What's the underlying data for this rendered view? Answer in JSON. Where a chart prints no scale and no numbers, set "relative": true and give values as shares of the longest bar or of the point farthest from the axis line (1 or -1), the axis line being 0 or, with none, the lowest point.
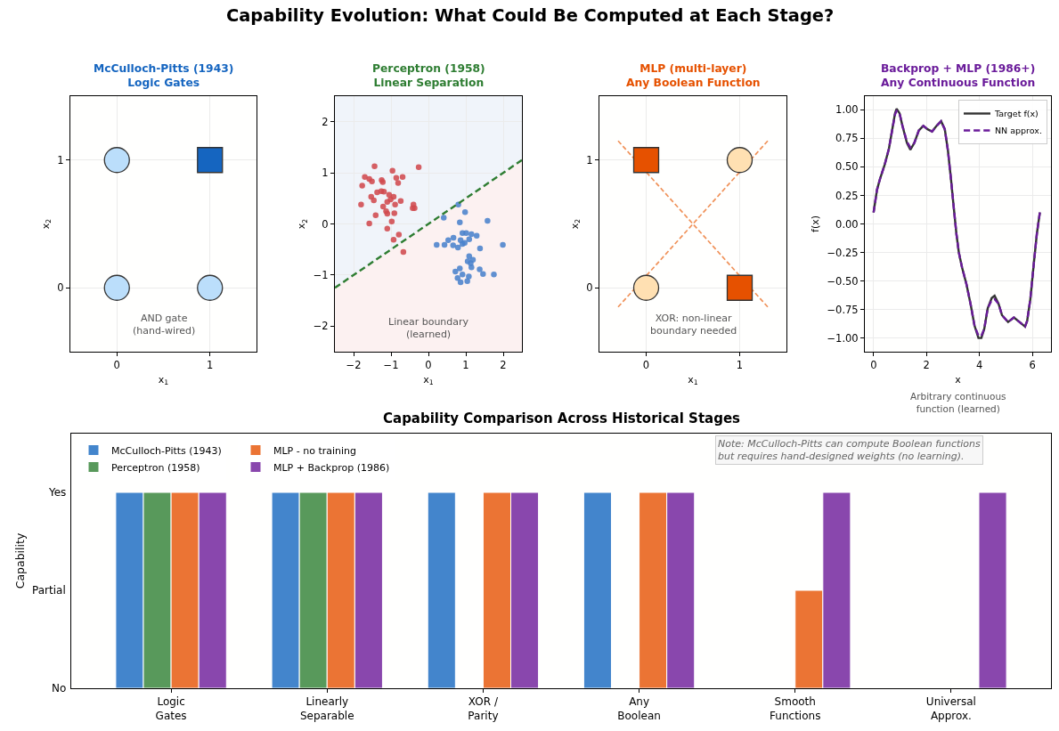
{
  "chart_data": [
    {
      "type": "other",
      "title": "Capability Evolution: What Could Be Computed at Each Stage?"
    },
    {
      "type": "scatter",
      "title": "McCulloch-Pitts (1943)\nLogic Gates",
      "xlabel": "x$_{1}$",
      "ylabel": "x$_{2}$",
      "xlim": [
        -0.5,
        1.5
      ],
      "ylim": [
        -0.5,
        1.5
      ],
      "xticks": [
        0,
        1
      ],
      "yticks": [
        0,
        1
      ],
      "grid": true,
      "annotations": [
        "AND gate\n(hand-wired)"
      ],
      "series": [
        {
          "x": [
            0,
            0,
            1
          ],
          "values": [
            0,
            1,
            0
          ],
          "color": "#bbdefb",
          "marker": "circle"
        },
        {
          "x": [
            1
          ],
          "values": [
            1
          ],
          "color": "#1565c0",
          "marker": "square"
        }
      ]
    },
    {
      "type": "scatter",
      "title": "Perceptron (1958)\nLinear Separation",
      "xlabel": "x$_{1}$",
      "ylabel": "x$_{2}$",
      "xlim": [
        -2.5,
        2.5
      ],
      "ylim": [
        -2.5,
        2.5
      ],
      "xticks": [
        -2,
        -1,
        0,
        1,
        2
      ],
      "yticks": [
        -2,
        -1,
        0,
        1,
        2
      ],
      "grid": true,
      "annotations": [
        "Linear boundary\n(learned)"
      ],
      "series": [
        {
          "x": [
            -1.44,
            -0.96,
            -0.26,
            -1.7,
            -1.58,
            -1.51,
            -1.25,
            -1.22,
            -0.86,
            -0.69,
            -0.81,
            -1.77,
            -1.37,
            -1.26,
            -1.19,
            -1.05,
            -0.93,
            -1.53,
            -1.46,
            -1.01,
            -0.74,
            -1.1,
            -1.8,
            -1.21,
            -0.89,
            -0.4,
            -0.42,
            -0.37,
            -1.13,
            -1.1,
            -0.91,
            -1.41,
            -1.58,
            -0.98,
            -1.1,
            -0.79,
            -0.93,
            -0.67
          ],
          "values": [
            1.13,
            1.04,
            1.11,
            0.92,
            0.88,
            0.83,
            0.86,
            0.82,
            0.9,
            0.92,
            0.8,
            0.75,
            0.62,
            0.64,
            0.63,
            0.57,
            0.53,
            0.53,
            0.46,
            0.48,
            0.45,
            0.43,
            0.38,
            0.34,
            0.38,
            0.38,
            0.31,
            0.31,
            0.25,
            0.2,
            0.21,
            0.17,
            0.01,
            0.05,
            -0.09,
            -0.21,
            -0.31,
            -0.55
          ],
          "color": "#d04a4f",
          "marker": "circle"
        },
        {
          "x": [
            0.8,
            0.98,
            0.41,
            0.84,
            1.58,
            0.91,
            1.01,
            1.15,
            1.29,
            0.67,
            0.53,
            0.86,
            1.09,
            0.22,
            0.43,
            0.66,
            0.91,
            0.97,
            0.79,
            1.38,
            1.99,
            1.09,
            1.19,
            1.05,
            1.13,
            1.15,
            0.84,
            0.72,
            1.37,
            1.46,
            1.75,
            0.91,
            1.08,
            0.78,
            0.86,
            1.04
          ],
          "values": [
            0.38,
            0.23,
            0.12,
            0.03,
            0.06,
            -0.18,
            -0.18,
            -0.2,
            -0.23,
            -0.27,
            -0.32,
            -0.32,
            -0.3,
            -0.41,
            -0.41,
            -0.42,
            -0.39,
            -0.37,
            -0.46,
            -0.48,
            -0.41,
            -0.63,
            -0.7,
            -0.73,
            -0.77,
            -0.85,
            -0.87,
            -0.93,
            -0.89,
            -0.98,
            -0.99,
            -0.99,
            -1.03,
            -1.06,
            -1.14,
            -1.12
          ],
          "color": "#4a82cc",
          "marker": "circle"
        },
        {
          "type": "line",
          "x": [
            -2.5,
            2.5
          ],
          "values": [
            -1.25,
            1.25
          ],
          "lower": [
            -2.5,
            -2.5
          ],
          "upper": [
            -1.25,
            1.25
          ],
          "color": "#2e7d32",
          "line_style": "dashed"
        }
      ]
    },
    {
      "type": "scatter",
      "title": "MLP (multi-layer)\nAny Boolean Function",
      "xlabel": "x$_{1}$",
      "ylabel": "x$_{2}$",
      "xlim": [
        -0.5,
        1.5
      ],
      "ylim": [
        -0.5,
        1.5
      ],
      "xticks": [
        0,
        1
      ],
      "yticks": [
        0,
        1
      ],
      "grid": true,
      "annotations": [
        "XOR: non-linear\nboundary needed"
      ],
      "series": [
        {
          "type": "line",
          "x": [
            -0.3,
            1.3
          ],
          "values": [
            -0.15,
            1.15
          ],
          "color": "#f0925a",
          "line_style": "dashed"
        },
        {
          "type": "line",
          "x": [
            -0.3,
            1.3
          ],
          "values": [
            1.15,
            -0.15
          ],
          "color": "#f0925a",
          "line_style": "dashed"
        },
        {
          "x": [
            0,
            1
          ],
          "values": [
            1,
            0
          ],
          "color": "#e65100",
          "marker": "square"
        },
        {
          "x": [
            0,
            1
          ],
          "values": [
            0,
            1
          ],
          "color": "#ffe0b2",
          "marker": "circle"
        }
      ]
    },
    {
      "type": "line",
      "title": "Backprop + MLP (1986+)\nAny Continuous Function",
      "xlabel": "x",
      "ylabel": "f(x)",
      "xlim": [
        -0.33,
        6.7
      ],
      "ylim": [
        -1.12,
        1.12
      ],
      "xticks": [
        0,
        2,
        4,
        6
      ],
      "yticks": [
        {
          "value": -1,
          "label": "−1.00"
        },
        {
          "value": -0.75,
          "label": "−0.75"
        },
        {
          "value": -0.5,
          "label": "−0.50"
        },
        {
          "value": -0.25,
          "label": "−0.25"
        },
        {
          "value": 0,
          "label": "0.00"
        },
        {
          "value": 0.25,
          "label": "0.25"
        },
        {
          "value": 0.5,
          "label": "0.50"
        },
        {
          "value": 0.75,
          "label": "0.75"
        },
        {
          "value": 1,
          "label": "1.00"
        }
      ],
      "grid": true,
      "legend": "top right",
      "annotations": [
        "Arbitrary continuous\nfunction (learned)"
      ],
      "x": [
        0,
        0.13,
        0.25,
        0.42,
        0.58,
        0.7,
        0.81,
        0.87,
        0.98,
        1.09,
        1.26,
        1.39,
        1.54,
        1.71,
        1.88,
        2.04,
        2.21,
        2.38,
        2.55,
        2.69,
        2.81,
        2.92,
        3.03,
        3.13,
        3.22,
        3.34,
        3.51,
        3.67,
        3.81,
        3.96,
        4.07,
        4.18,
        4.31,
        4.46,
        4.57,
        4.72,
        4.85,
        5.08,
        5.3,
        5.51,
        5.72,
        5.8,
        5.92,
        6.05,
        6.17,
        6.28
      ],
      "series": [
        {
          "name": "Target f(x)",
          "color": "#333333",
          "line_style": "solid",
          "values": [
            0.1,
            0.3,
            0.4,
            0.52,
            0.66,
            0.82,
            0.97,
            1.01,
            0.97,
            0.86,
            0.71,
            0.65,
            0.71,
            0.82,
            0.86,
            0.83,
            0.81,
            0.86,
            0.9,
            0.83,
            0.64,
            0.4,
            0.14,
            -0.09,
            -0.25,
            -0.38,
            -0.53,
            -0.71,
            -0.89,
            -1.0,
            -1.0,
            -0.92,
            -0.74,
            -0.65,
            -0.63,
            -0.7,
            -0.8,
            -0.86,
            -0.82,
            -0.86,
            -0.9,
            -0.85,
            -0.66,
            -0.35,
            -0.08,
            0.1
          ]
        },
        {
          "name": "NN approx.",
          "color": "#6a1b9a",
          "line_style": "dashed",
          "values": [
            0.1,
            0.3,
            0.4,
            0.52,
            0.66,
            0.82,
            0.96,
            0.99,
            0.97,
            0.86,
            0.72,
            0.67,
            0.71,
            0.82,
            0.86,
            0.83,
            0.81,
            0.86,
            0.9,
            0.83,
            0.64,
            0.4,
            0.14,
            -0.09,
            -0.25,
            -0.38,
            -0.53,
            -0.71,
            -0.89,
            -0.98,
            -0.98,
            -0.92,
            -0.74,
            -0.67,
            -0.66,
            -0.7,
            -0.8,
            -0.86,
            -0.82,
            -0.86,
            -0.9,
            -0.85,
            -0.66,
            -0.35,
            -0.08,
            0.1
          ]
        }
      ]
    },
    {
      "type": "bar",
      "relative": true,
      "title": "Capability Comparison Across Historical Stages",
      "ylabel": "Capability",
      "categories": [
        "Logic\nGates",
        "Linearly\nSeparable",
        "XOR /\nParity",
        "Any\nBoolean",
        "Smooth\nFunctions",
        "Universal\nApprox."
      ],
      "legend": "top left",
      "annotations": [
        "Note: McCulloch-Pitts can compute Boolean functions\nbut requires hand-designed weights (no learning).",
        "Yes",
        "Partial",
        "No"
      ],
      "series": [
        {
          "name": "McCulloch-Pitts (1943)",
          "color": "#4385cc",
          "values": [
            1,
            1,
            1,
            1,
            0,
            0
          ]
        },
        {
          "name": "Perceptron (1958)",
          "color": "#58995b",
          "values": [
            1,
            1,
            0,
            0,
            0,
            0
          ]
        },
        {
          "name": "MLP - no training",
          "color": "#eb7434",
          "values": [
            1,
            1,
            1,
            1,
            0.5,
            0
          ]
        },
        {
          "name": "MLP + Backprop (1986)",
          "color": "#8947ad",
          "values": [
            1,
            1,
            1,
            1,
            1,
            1
          ]
        }
      ]
    }
  ]
}
